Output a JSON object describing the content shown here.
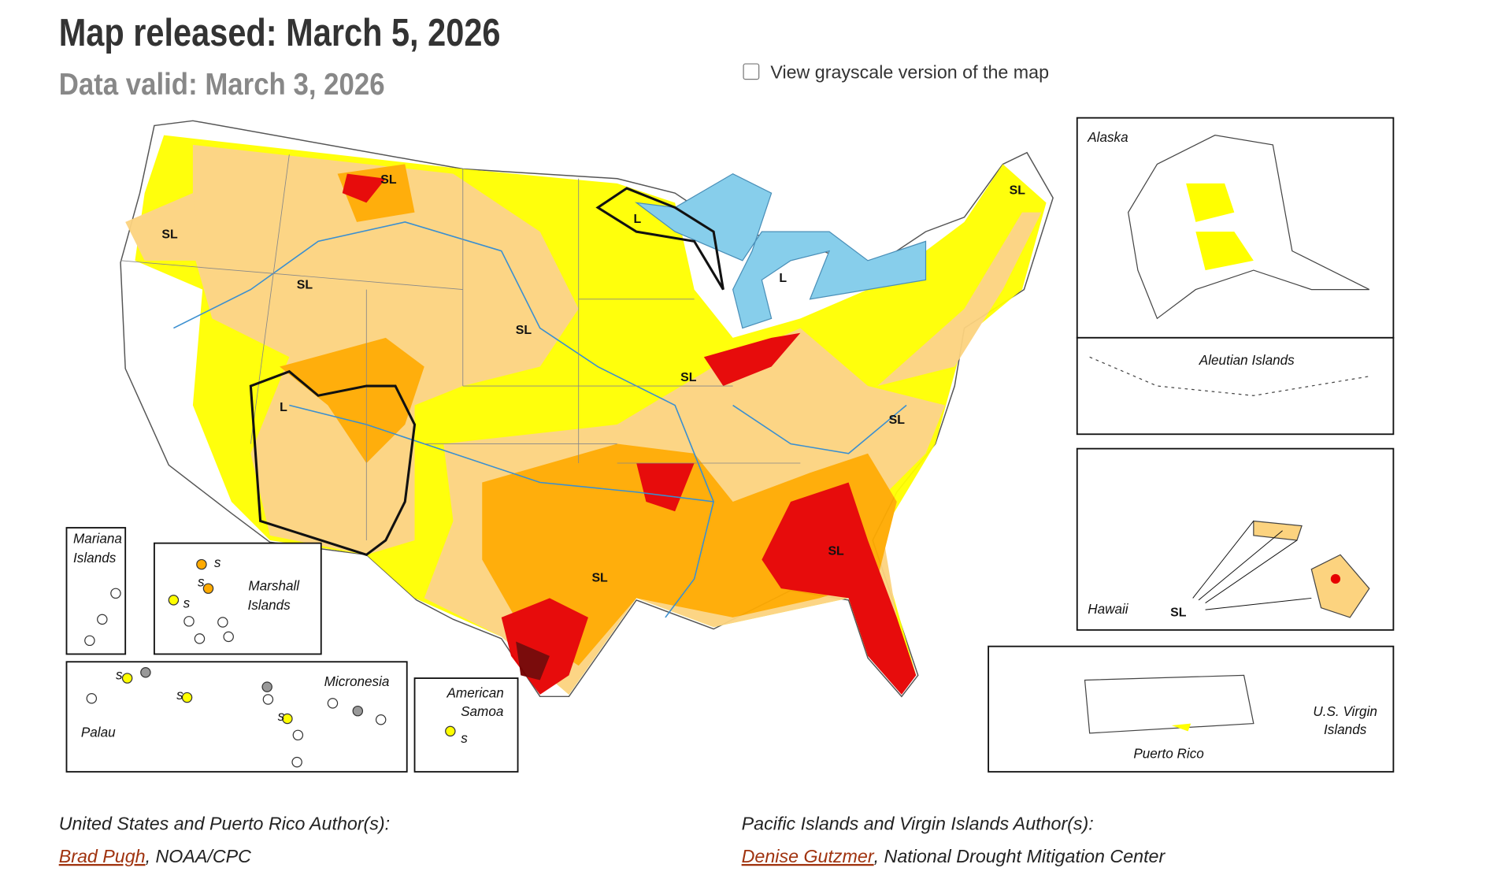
{
  "header": {
    "title": "Map released: March 5, 2026",
    "subtitle": "Data valid: March 3, 2026",
    "checkbox_label": "View grayscale version of the map"
  },
  "map": {
    "labels": [
      "SL",
      "SL",
      "L",
      "SL",
      "SL",
      "L",
      "SL",
      "SL",
      "L",
      "SL",
      "SL",
      "SL",
      "SL"
    ],
    "inset_labels": [
      "Alaska",
      "Aleutian Islands",
      "Hawaii",
      "Puerto Rico",
      "U.S. Virgin",
      "Islands",
      "Mariana",
      "Islands",
      "Marshall",
      "Islands",
      "Micronesia",
      "Palau",
      "American",
      "Samoa"
    ],
    "site_labels": [
      "s",
      "s",
      "s",
      "s",
      "s",
      "s",
      "s"
    ]
  },
  "authors": {
    "us_heading": "United States and Puerto Rico Author(s):",
    "us_name": "Brad Pugh",
    "us_affiliation": ", NOAA/CPC",
    "pacific_heading": "Pacific Islands and Virgin Islands Author(s):",
    "pacific_name": "Denise Gutzmer",
    "pacific_affiliation": ", National Drought Mitigation Center"
  }
}
